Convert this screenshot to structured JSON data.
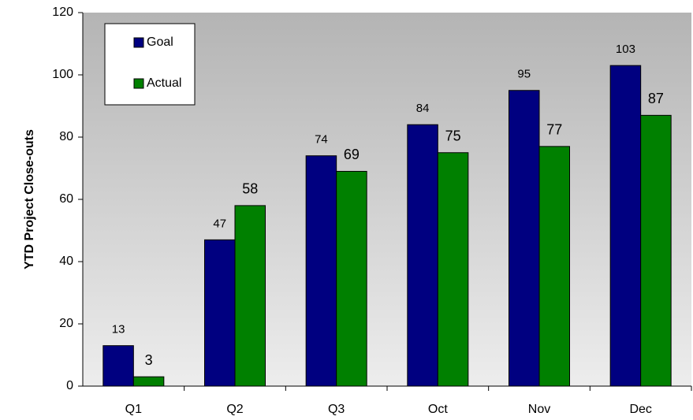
{
  "chart_data": {
    "type": "bar",
    "y_label": "YTD Project Close-outs",
    "categories": [
      "Q1",
      "Q2",
      "Q3",
      "Oct",
      "Nov",
      "Dec"
    ],
    "series": [
      {
        "name": "Goal",
        "color": "#000080",
        "values": [
          13,
          47,
          74,
          84,
          95,
          103
        ]
      },
      {
        "name": "Actual",
        "color": "#008000",
        "values": [
          3,
          58,
          69,
          75,
          77,
          87
        ]
      }
    ],
    "ylim": [
      0,
      120
    ],
    "yticks": [
      0,
      20,
      40,
      60,
      80,
      100,
      120
    ],
    "grid": false,
    "legend": "upper left"
  }
}
